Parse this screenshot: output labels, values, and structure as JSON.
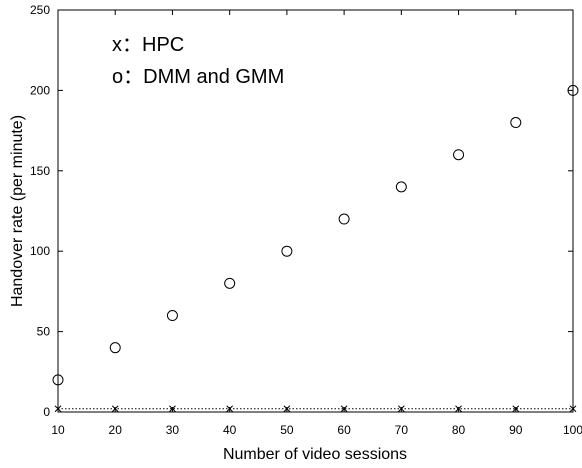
{
  "chart_data": {
    "type": "scatter",
    "xlabel": "Number of video sessions",
    "ylabel": "Handover rate (per minute)",
    "xlim": [
      10,
      100
    ],
    "ylim": [
      0,
      250
    ],
    "x_ticks": [
      10,
      20,
      30,
      40,
      50,
      60,
      70,
      80,
      90,
      100
    ],
    "y_ticks": [
      0,
      50,
      100,
      150,
      200,
      250
    ],
    "grid": false,
    "legend_placement": "top-left",
    "legend": [
      {
        "marker": "x",
        "label": "x：HPC"
      },
      {
        "marker": "o",
        "label": "o：DMM and GMM"
      }
    ],
    "series": [
      {
        "name": "HPC",
        "marker": "x",
        "line": "dotted",
        "x": [
          10,
          20,
          30,
          40,
          50,
          60,
          70,
          80,
          90,
          100
        ],
        "y": [
          2,
          2,
          2,
          2,
          2,
          2,
          2,
          2,
          2,
          2
        ]
      },
      {
        "name": "DMM and GMM",
        "marker": "o",
        "line": "none",
        "x": [
          10,
          20,
          30,
          40,
          50,
          60,
          70,
          80,
          90,
          100
        ],
        "y": [
          20,
          40,
          60,
          80,
          100,
          120,
          140,
          160,
          180,
          200
        ]
      }
    ]
  }
}
